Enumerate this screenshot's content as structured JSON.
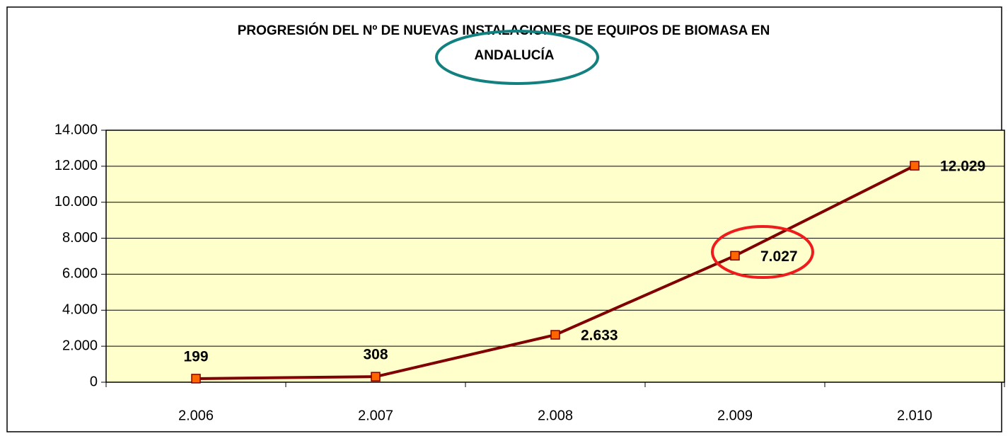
{
  "chart_data": {
    "type": "line",
    "title": [
      "PROGRESIÓN DEL Nº DE NUEVAS INSTALACIONES DE EQUIPOS DE BIOMASA EN",
      "ANDALUCÍA"
    ],
    "categories": [
      "2.006",
      "2.007",
      "2.008",
      "2.009",
      "2.010"
    ],
    "values": [
      199,
      308,
      2633,
      7027,
      12029
    ],
    "value_labels": [
      "199",
      "308",
      "2.633",
      "7.027",
      "12.029"
    ],
    "color": "#800000",
    "marker_color": "#ff6600",
    "plot_background": "#ffffcc",
    "ylim": [
      0,
      14000
    ],
    "yticks": [
      0,
      {
        "value": 2000,
        "label": "2.000"
      },
      {
        "value": 4000,
        "label": "4.000"
      },
      {
        "value": 6000,
        "label": "6.000"
      },
      {
        "value": 8000,
        "label": "8.000"
      },
      {
        "value": 10000,
        "label": "10.000"
      },
      {
        "value": 12000,
        "label": "12.000"
      },
      {
        "value": 14000,
        "label": "14.000"
      }
    ],
    "grid": true
  }
}
